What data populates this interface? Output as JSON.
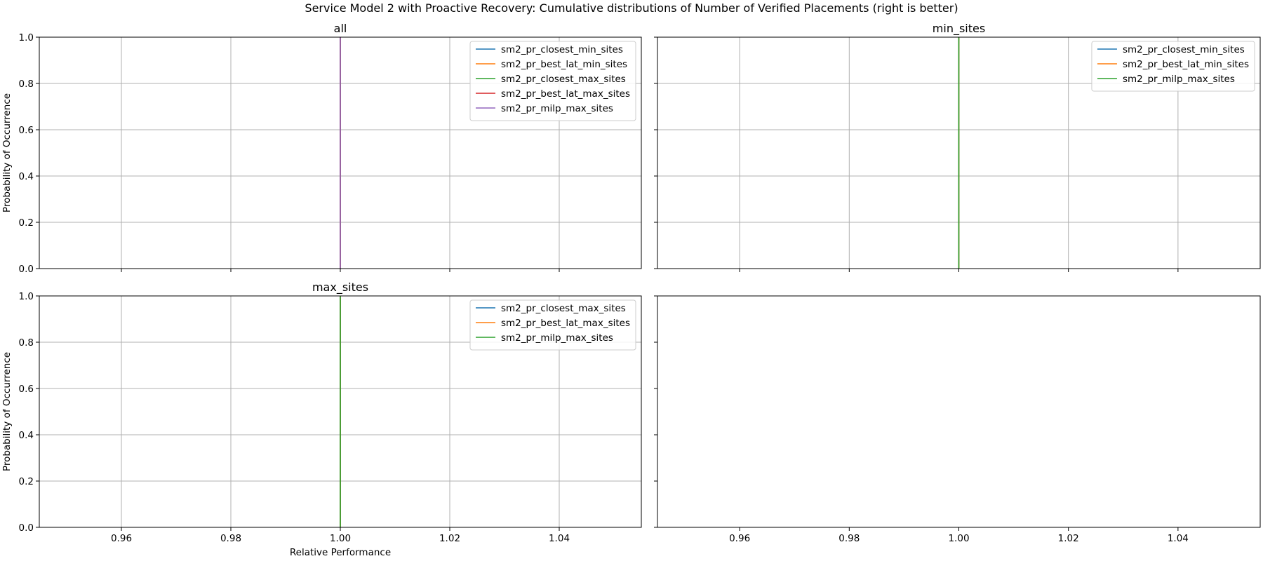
{
  "figure": {
    "suptitle": "Service Model 2 with Proactive Recovery: Cumulative distributions of Number of Verified Placements (right is better)"
  },
  "chart_data": [
    {
      "type": "line",
      "title": "all",
      "xlabel": "",
      "ylabel": "Probability of Occurrence",
      "xlim": [
        0.945,
        1.055
      ],
      "ylim": [
        0,
        1
      ],
      "x_ticks": [
        "0.96",
        "0.98",
        "1.00",
        "1.02",
        "1.04"
      ],
      "y_ticks": [
        "0.0",
        "0.2",
        "0.4",
        "0.6",
        "0.8",
        "1.0"
      ],
      "grid": true,
      "legend_position": "upper right",
      "series": [
        {
          "name": "sm2_pr_closest_min_sites",
          "color": "#1f77b4",
          "x": [
            1.0,
            1.0
          ],
          "y": [
            0,
            1
          ]
        },
        {
          "name": "sm2_pr_best_lat_min_sites",
          "color": "#ff7f0e",
          "x": [
            1.0,
            1.0
          ],
          "y": [
            0,
            1
          ]
        },
        {
          "name": "sm2_pr_closest_max_sites",
          "color": "#2ca02c",
          "x": [
            1.0,
            1.0
          ],
          "y": [
            0,
            1
          ]
        },
        {
          "name": "sm2_pr_best_lat_max_sites",
          "color": "#d62728",
          "x": [
            1.0,
            1.0
          ],
          "y": [
            0,
            1
          ]
        },
        {
          "name": "sm2_pr_milp_max_sites",
          "color": "#9467bd",
          "x": [
            1.0,
            1.0
          ],
          "y": [
            0,
            1
          ]
        }
      ]
    },
    {
      "type": "line",
      "title": "min_sites",
      "xlabel": "",
      "ylabel": "",
      "xlim": [
        0.945,
        1.055
      ],
      "ylim": [
        0,
        1
      ],
      "x_ticks": [
        "0.96",
        "0.98",
        "1.00",
        "1.02",
        "1.04"
      ],
      "y_ticks": [
        "",
        "",
        "",
        "",
        "",
        ""
      ],
      "grid": true,
      "legend_position": "upper right",
      "series": [
        {
          "name": "sm2_pr_closest_min_sites",
          "color": "#1f77b4",
          "x": [
            1.0,
            1.0
          ],
          "y": [
            0,
            1
          ]
        },
        {
          "name": "sm2_pr_best_lat_min_sites",
          "color": "#ff7f0e",
          "x": [
            1.0,
            1.0
          ],
          "y": [
            0,
            1
          ]
        },
        {
          "name": "sm2_pr_milp_max_sites",
          "color": "#2ca02c",
          "x": [
            1.0,
            1.0
          ],
          "y": [
            0,
            1
          ]
        }
      ]
    },
    {
      "type": "line",
      "title": "max_sites",
      "xlabel": "Relative Performance",
      "ylabel": "Probability of Occurrence",
      "xlim": [
        0.945,
        1.055
      ],
      "ylim": [
        0,
        1
      ],
      "x_ticks": [
        "0.96",
        "0.98",
        "1.00",
        "1.02",
        "1.04"
      ],
      "y_ticks": [
        "0.0",
        "0.2",
        "0.4",
        "0.6",
        "0.8",
        "1.0"
      ],
      "grid": true,
      "legend_position": "upper right",
      "series": [
        {
          "name": "sm2_pr_closest_max_sites",
          "color": "#1f77b4",
          "x": [
            1.0,
            1.0
          ],
          "y": [
            0,
            1
          ]
        },
        {
          "name": "sm2_pr_best_lat_max_sites",
          "color": "#ff7f0e",
          "x": [
            1.0,
            1.0
          ],
          "y": [
            0,
            1
          ]
        },
        {
          "name": "sm2_pr_milp_max_sites",
          "color": "#2ca02c",
          "x": [
            1.0,
            1.0
          ],
          "y": [
            0,
            1
          ]
        }
      ]
    },
    {
      "type": "line",
      "title": "",
      "xlabel": "",
      "ylabel": "",
      "xlim": [
        0.945,
        1.055
      ],
      "ylim": [
        0,
        1
      ],
      "x_ticks": [
        "0.96",
        "0.98",
        "1.00",
        "1.02",
        "1.04"
      ],
      "y_ticks": [
        "",
        "",
        "",
        "",
        "",
        ""
      ],
      "grid": false,
      "series": []
    }
  ]
}
